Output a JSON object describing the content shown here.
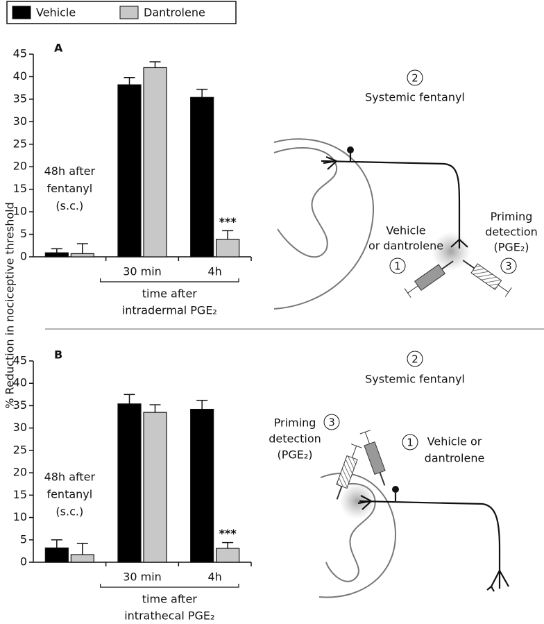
{
  "legend_border": true,
  "y_label": "% Reduction in nociceptive threshold",
  "chart_data": [
    {
      "type": "bar",
      "panel": "A",
      "categories": [
        null,
        "30 min",
        "4h"
      ],
      "series": [
        {
          "name": "Vehicle",
          "color": "#000000",
          "values": [
            0.9,
            38.2,
            35.4
          ],
          "errors": [
            0.9,
            1.6,
            1.8
          ]
        },
        {
          "name": "Dantrolene",
          "color": "#c8c8c8",
          "values": [
            0.7,
            42.0,
            3.9
          ],
          "errors": [
            2.2,
            1.3,
            1.9
          ]
        }
      ],
      "ylim": [
        0,
        45
      ],
      "yticks": [
        0,
        5,
        10,
        15,
        20,
        25,
        30,
        35,
        40,
        45
      ],
      "group_note": [
        "48h after",
        "fentanyl",
        "(s.c.)"
      ],
      "significance": "***",
      "x_label": [
        "time after",
        "intradermal PGE₂"
      ]
    },
    {
      "type": "bar",
      "panel": "B",
      "categories": [
        null,
        "30 min",
        "4h"
      ],
      "series": [
        {
          "color": "#000000",
          "values": [
            3.2,
            35.4,
            34.2
          ],
          "errors": [
            1.8,
            2.1,
            2.0
          ]
        },
        {
          "color": "#c8c8c8",
          "values": [
            1.7,
            33.5,
            3.1
          ],
          "errors": [
            2.5,
            1.7,
            1.3
          ]
        }
      ],
      "ylim": [
        0,
        45
      ],
      "yticks": [
        0,
        5,
        10,
        15,
        20,
        25,
        30,
        35,
        40,
        45
      ],
      "group_note": [
        "48h after",
        "fentanyl",
        "(s.c.)"
      ],
      "significance": "***",
      "x_label": [
        "time after",
        "intrathecal PGE₂"
      ]
    }
  ],
  "diagrams": [
    {
      "steps": [
        "1",
        "2",
        "3"
      ],
      "labels": [
        "Systemic fentanyl",
        "Vehicle",
        "or dantrolene",
        "Priming",
        "detection",
        "(PGE₂)"
      ]
    },
    {
      "steps": [
        "1",
        "2",
        "3"
      ],
      "labels": [
        "Systemic fentanyl",
        "Priming",
        "detection",
        "(PGE₂)",
        "Vehicle or",
        "dantrolene"
      ]
    }
  ]
}
